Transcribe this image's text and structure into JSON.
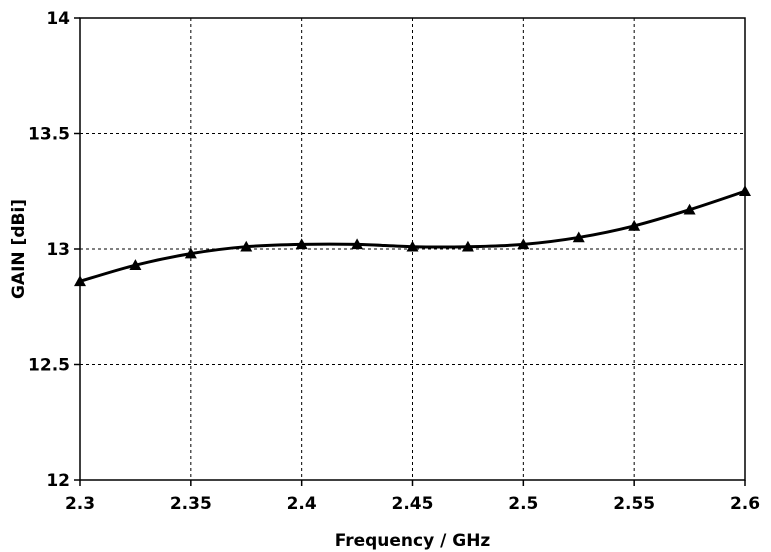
{
  "chart_data": {
    "type": "line",
    "title": "",
    "xlabel": "Frequency / GHz",
    "ylabel": "GAIN [dBi]",
    "xlim": [
      2.3,
      2.6
    ],
    "ylim": [
      12,
      14
    ],
    "x_ticks": [
      "2.3",
      "2.35",
      "2.4",
      "2.45",
      "2.5",
      "2.55",
      "2.6"
    ],
    "y_ticks": [
      "12",
      "12.5",
      "13",
      "13.5",
      "14"
    ],
    "grid": true,
    "marker": "triangle",
    "line_color": "#000000",
    "x": [
      2.3,
      2.325,
      2.35,
      2.375,
      2.4,
      2.425,
      2.45,
      2.475,
      2.5,
      2.525,
      2.55,
      2.575,
      2.6
    ],
    "series": [
      {
        "values": [
          12.86,
          12.93,
          12.98,
          13.01,
          13.02,
          13.02,
          13.01,
          13.01,
          13.02,
          13.05,
          13.1,
          13.17,
          13.25
        ]
      }
    ]
  }
}
